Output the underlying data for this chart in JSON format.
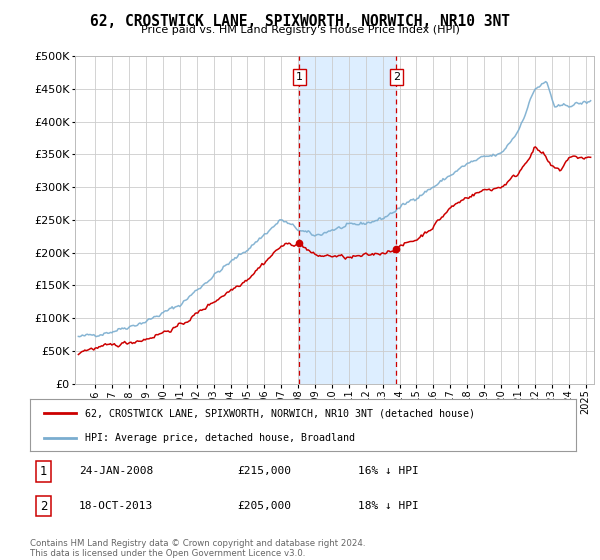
{
  "title": "62, CROSTWICK LANE, SPIXWORTH, NORWICH, NR10 3NT",
  "subtitle": "Price paid vs. HM Land Registry's House Price Index (HPI)",
  "ylim": [
    0,
    500000
  ],
  "ytick_values": [
    0,
    50000,
    100000,
    150000,
    200000,
    250000,
    300000,
    350000,
    400000,
    450000,
    500000
  ],
  "purchase1_x": 2008.07,
  "purchase1_price": 215000,
  "purchase2_x": 2013.8,
  "purchase2_price": 205000,
  "legend_line1": "62, CROSTWICK LANE, SPIXWORTH, NORWICH, NR10 3NT (detached house)",
  "legend_line2": "HPI: Average price, detached house, Broadland",
  "footer": "Contains HM Land Registry data © Crown copyright and database right 2024.\nThis data is licensed under the Open Government Licence v3.0.",
  "line_color_red": "#cc0000",
  "line_color_blue": "#7aadcf",
  "shade_color": "#ddeeff",
  "vline_color": "#cc0000",
  "xlim_start": 1994.8,
  "xlim_end": 2025.5,
  "xticks": [
    1996,
    1997,
    1998,
    1999,
    2000,
    2001,
    2002,
    2003,
    2004,
    2005,
    2006,
    2007,
    2008,
    2009,
    2010,
    2011,
    2012,
    2013,
    2014,
    2015,
    2016,
    2017,
    2018,
    2019,
    2020,
    2021,
    2022,
    2023,
    2024,
    2025
  ],
  "annot1_label": "1",
  "annot1_date": "24-JAN-2008",
  "annot1_price": "£215,000",
  "annot1_hpi": "16% ↓ HPI",
  "annot2_label": "2",
  "annot2_date": "18-OCT-2013",
  "annot2_price": "£205,000",
  "annot2_hpi": "18% ↓ HPI"
}
